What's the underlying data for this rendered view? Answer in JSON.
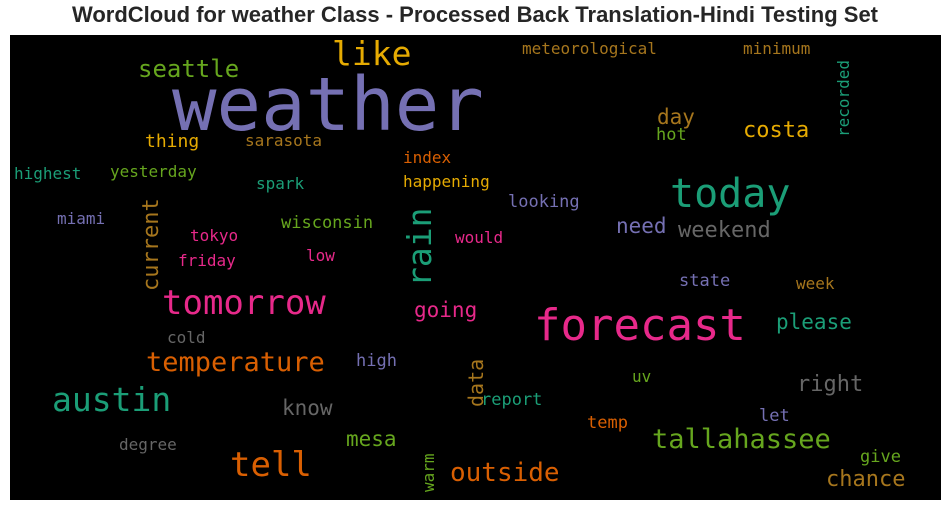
{
  "chart_data": {
    "type": "wordcloud",
    "title": "WordCloud for weather Class - Processed Back Translation-Hindi Testing Set",
    "background": "#000000",
    "palette": "Dark2",
    "words": [
      {
        "text": "weather",
        "color": "#7570b3"
      },
      {
        "text": "forecast",
        "color": "#e7298a"
      },
      {
        "text": "today",
        "color": "#1b9e77"
      },
      {
        "text": "tomorrow",
        "color": "#e7298a"
      },
      {
        "text": "tell",
        "color": "#d95f02"
      },
      {
        "text": "austin",
        "color": "#1b9e77"
      },
      {
        "text": "like",
        "color": "#e6ab02"
      },
      {
        "text": "rain",
        "color": "#1b9e77"
      },
      {
        "text": "temperature",
        "color": "#d95f02"
      },
      {
        "text": "tallahassee",
        "color": "#66a61e"
      },
      {
        "text": "outside",
        "color": "#d95f02"
      },
      {
        "text": "seattle",
        "color": "#66a61e"
      },
      {
        "text": "current",
        "color": "#a6761d"
      },
      {
        "text": "costa",
        "color": "#e6ab02"
      },
      {
        "text": "weekend",
        "color": "#666666"
      },
      {
        "text": "right",
        "color": "#666666"
      },
      {
        "text": "chance",
        "color": "#a6761d"
      },
      {
        "text": "please",
        "color": "#1b9e77"
      },
      {
        "text": "need",
        "color": "#7570b3"
      },
      {
        "text": "know",
        "color": "#666666"
      },
      {
        "text": "going",
        "color": "#e7298a"
      },
      {
        "text": "mesa",
        "color": "#66a61e"
      },
      {
        "text": "day",
        "color": "#a6761d"
      },
      {
        "text": "data",
        "color": "#a6761d"
      },
      {
        "text": "meteorological",
        "color": "#a6761d"
      },
      {
        "text": "minimum",
        "color": "#a6761d"
      },
      {
        "text": "recorded",
        "color": "#1b9e77"
      },
      {
        "text": "thing",
        "color": "#e6ab02"
      },
      {
        "text": "sarasota",
        "color": "#a6761d"
      },
      {
        "text": "hot",
        "color": "#66a61e"
      },
      {
        "text": "index",
        "color": "#d95f02"
      },
      {
        "text": "highest",
        "color": "#1b9e77"
      },
      {
        "text": "yesterday",
        "color": "#66a61e"
      },
      {
        "text": "spark",
        "color": "#1b9e77"
      },
      {
        "text": "happening",
        "color": "#e6ab02"
      },
      {
        "text": "looking",
        "color": "#7570b3"
      },
      {
        "text": "miami",
        "color": "#7570b3"
      },
      {
        "text": "wisconsin",
        "color": "#66a61e"
      },
      {
        "text": "tokyo",
        "color": "#e7298a"
      },
      {
        "text": "would",
        "color": "#e7298a"
      },
      {
        "text": "friday",
        "color": "#e7298a"
      },
      {
        "text": "low",
        "color": "#e7298a"
      },
      {
        "text": "state",
        "color": "#7570b3"
      },
      {
        "text": "week",
        "color": "#a6761d"
      },
      {
        "text": "cold",
        "color": "#666666"
      },
      {
        "text": "high",
        "color": "#7570b3"
      },
      {
        "text": "uv",
        "color": "#66a61e"
      },
      {
        "text": "report",
        "color": "#1b9e77"
      },
      {
        "text": "temp",
        "color": "#d95f02"
      },
      {
        "text": "let",
        "color": "#7570b3"
      },
      {
        "text": "degree",
        "color": "#666666"
      },
      {
        "text": "give",
        "color": "#66a61e"
      },
      {
        "text": "warm",
        "color": "#66a61e"
      }
    ]
  }
}
